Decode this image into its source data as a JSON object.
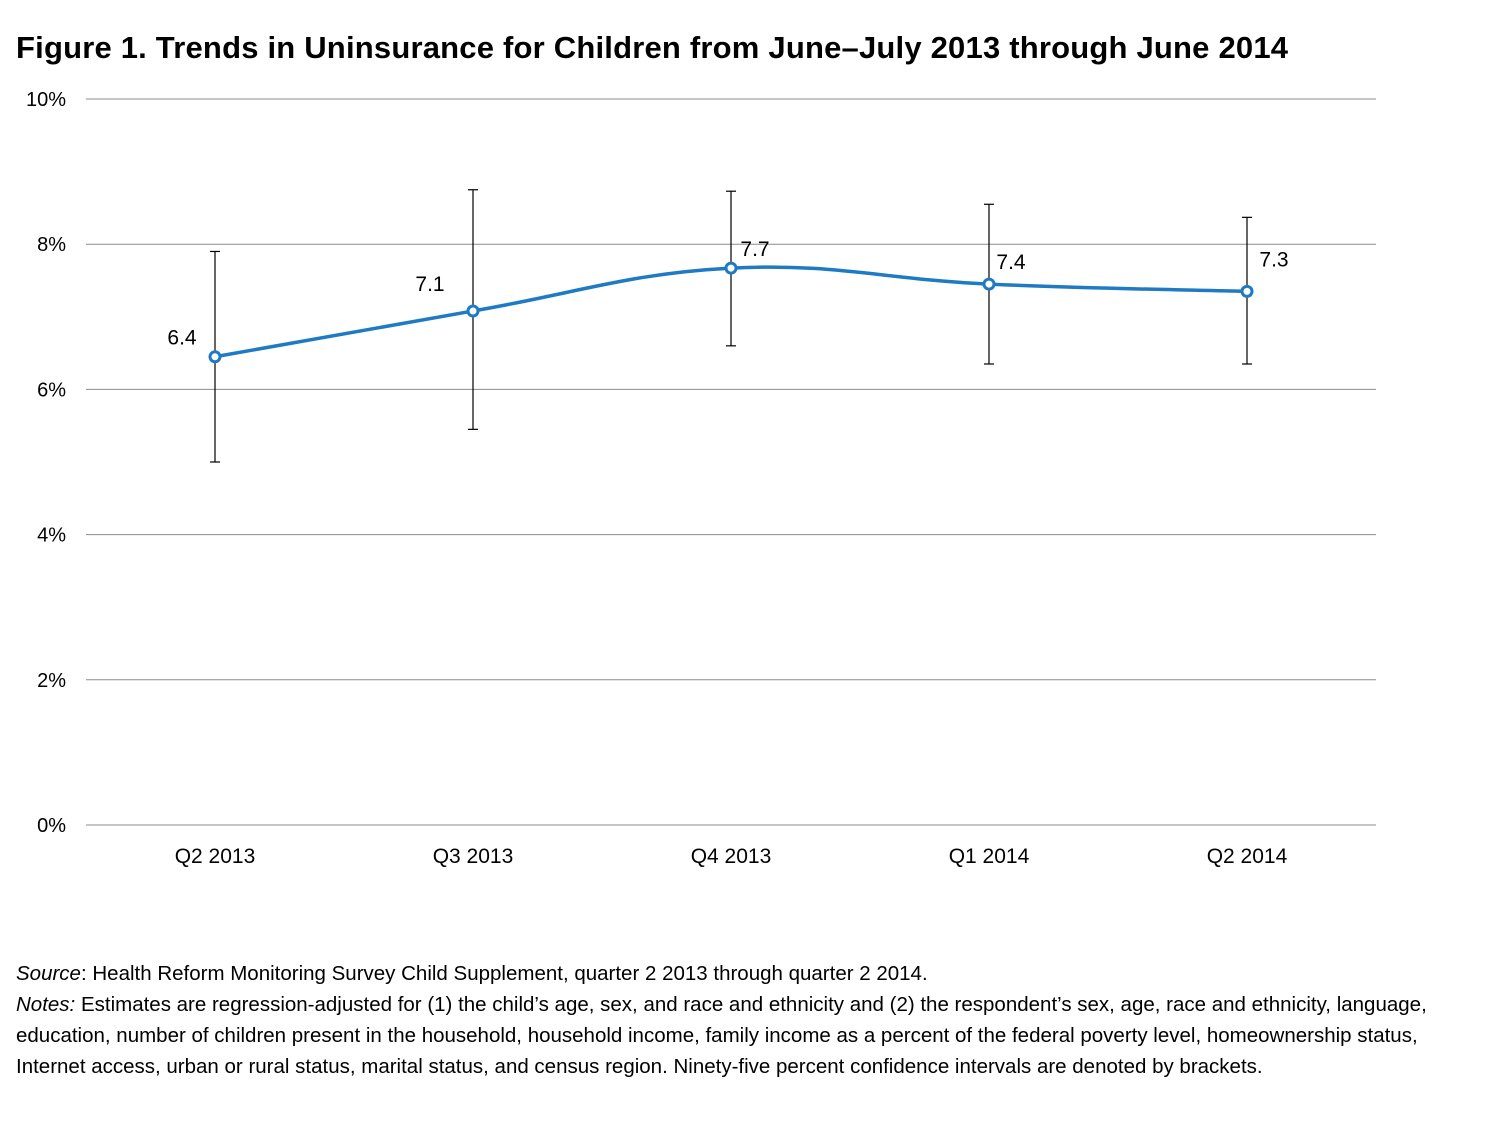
{
  "title": "Figure 1. Trends in Uninsurance for Children from June–July 2013 through June 2014",
  "chart_data": {
    "type": "line",
    "categories": [
      "Q2 2013",
      "Q3 2013",
      "Q4 2013",
      "Q1 2014",
      "Q2 2014"
    ],
    "series": [
      {
        "values": [
          6.4,
          7.1,
          7.7,
          7.4,
          7.3
        ],
        "plot_values": [
          6.45,
          7.08,
          7.67,
          7.45,
          7.35
        ],
        "ci_low": [
          5.0,
          5.45,
          6.6,
          6.35,
          6.35
        ],
        "ci_high": [
          7.9,
          8.75,
          8.73,
          8.55,
          8.37
        ],
        "color": "#1f7ac4"
      }
    ],
    "data_labels": [
      "6.4",
      "7.1",
      "7.7",
      "7.4",
      "7.3"
    ],
    "yticks": [
      "0%",
      "2%",
      "4%",
      "6%",
      "8%",
      "10%"
    ],
    "ylim": [
      0,
      10
    ],
    "grid": true,
    "legend": "none"
  },
  "notes": {
    "source_label": "Source",
    "source_text": ": Health Reform Monitoring Survey Child Supplement, quarter 2 2013 through quarter 2 2014.",
    "notes_label": "Notes:",
    "notes_text": " Estimates are regression-adjusted for (1) the child’s age, sex, and race and ethnicity and (2) the respondent’s sex, age, race and ethnicity, language, education, number of children present in the household, household income, family income as a percent of the federal poverty level, homeownership status, Internet access, urban or rural status, marital status, and census region. Ninety-five percent confidence intervals are denoted by brackets."
  }
}
